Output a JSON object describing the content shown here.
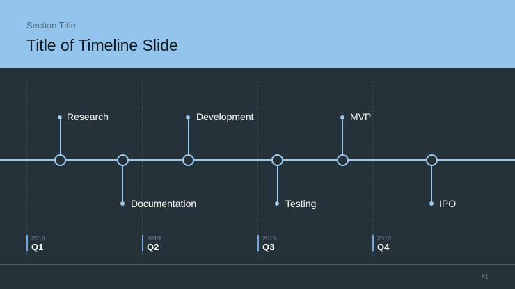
{
  "header": {
    "section_title": "Section Title",
    "title": "Title of Timeline Slide"
  },
  "timeline": {
    "events": [
      {
        "label": "Research"
      },
      {
        "label": "Documentation"
      },
      {
        "label": "Development"
      },
      {
        "label": "Testing"
      },
      {
        "label": "MVP"
      },
      {
        "label": "IPO"
      }
    ],
    "quarters": [
      {
        "year": "2019",
        "name": "Q1"
      },
      {
        "year": "2019",
        "name": "Q2"
      },
      {
        "year": "2019",
        "name": "Q3"
      },
      {
        "year": "2019",
        "name": "Q4"
      }
    ]
  },
  "footer": {
    "page_number": "#1"
  },
  "colors": {
    "header_bg": "#93c4ec",
    "slide_bg": "#25323a",
    "accent": "#9cc8ec"
  }
}
